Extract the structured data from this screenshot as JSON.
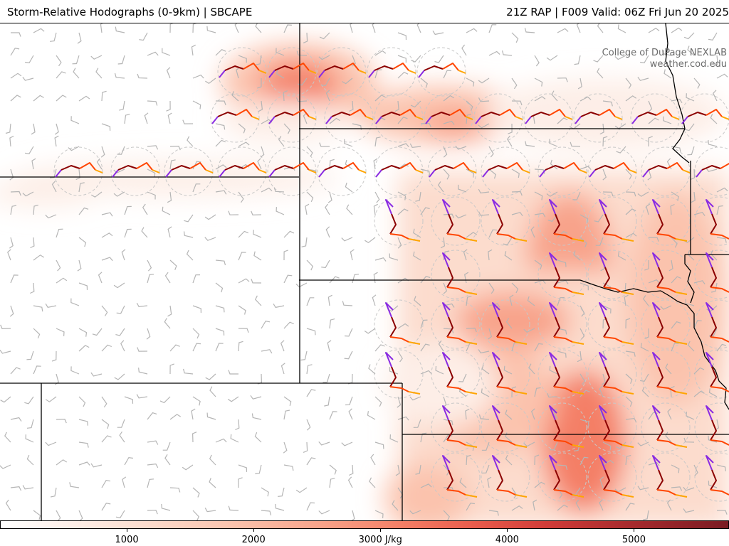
{
  "header": {
    "title_left": "Storm-Relative Hodographs (0-9km) | SBCAPE",
    "title_right": "21Z RAP | F009 Valid: 06Z Fri Jun 20 2025"
  },
  "credit": {
    "line1": "College of DuPage NEXLAB",
    "line2": "weather.cod.edu"
  },
  "colorbar": {
    "labels": [
      "1000",
      "2000",
      "3000 J/kg",
      "4000",
      "5000"
    ],
    "label_values": [
      1000,
      2000,
      3000,
      4000,
      5000
    ],
    "value_range": [
      0,
      5750
    ],
    "colors": [
      "#ffffff",
      "#fdeee7",
      "#fcdccd",
      "#fbc3ad",
      "#f8a38a",
      "#f47f66",
      "#e95c4c",
      "#d13c38",
      "#a92b2e",
      "#7a1b22"
    ]
  },
  "hodograph_colors": {
    "low_level": "#8a2be2",
    "mid_level_1": "#8b0000",
    "mid_level_2": "#ff4500",
    "upper_level": "#ffa500"
  }
}
